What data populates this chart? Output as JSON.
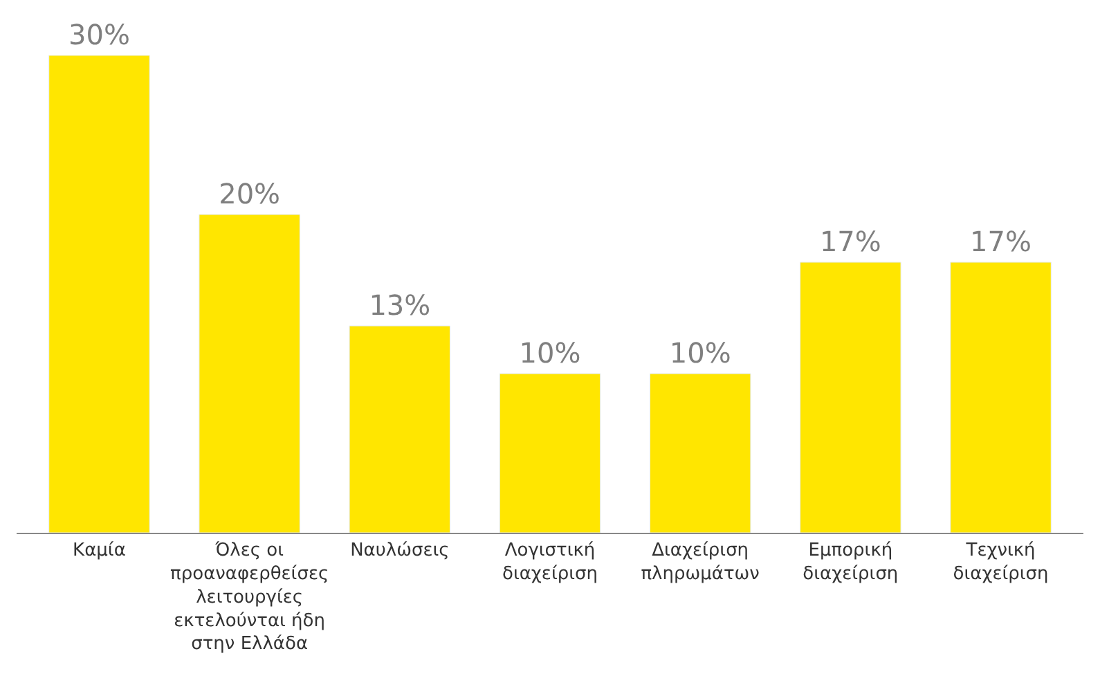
{
  "chart_data": {
    "type": "bar",
    "categories": [
      "Καμία",
      "Όλες οι προαναφερθείσες λειτουργίες εκτελούνται ήδη στην Ελλάδα",
      "Ναυλώσεις",
      "Λογιστική διαχείριση",
      "Διαχείριση πληρωμάτων",
      "Εμπορική διαχείριση",
      "Τεχνική διαχείριση"
    ],
    "values": [
      30,
      20,
      13,
      10,
      10,
      17,
      17
    ],
    "value_labels": [
      "30%",
      "20%",
      "13%",
      "10%",
      "10%",
      "17%",
      "17%"
    ],
    "color": "#ffe600"
  }
}
